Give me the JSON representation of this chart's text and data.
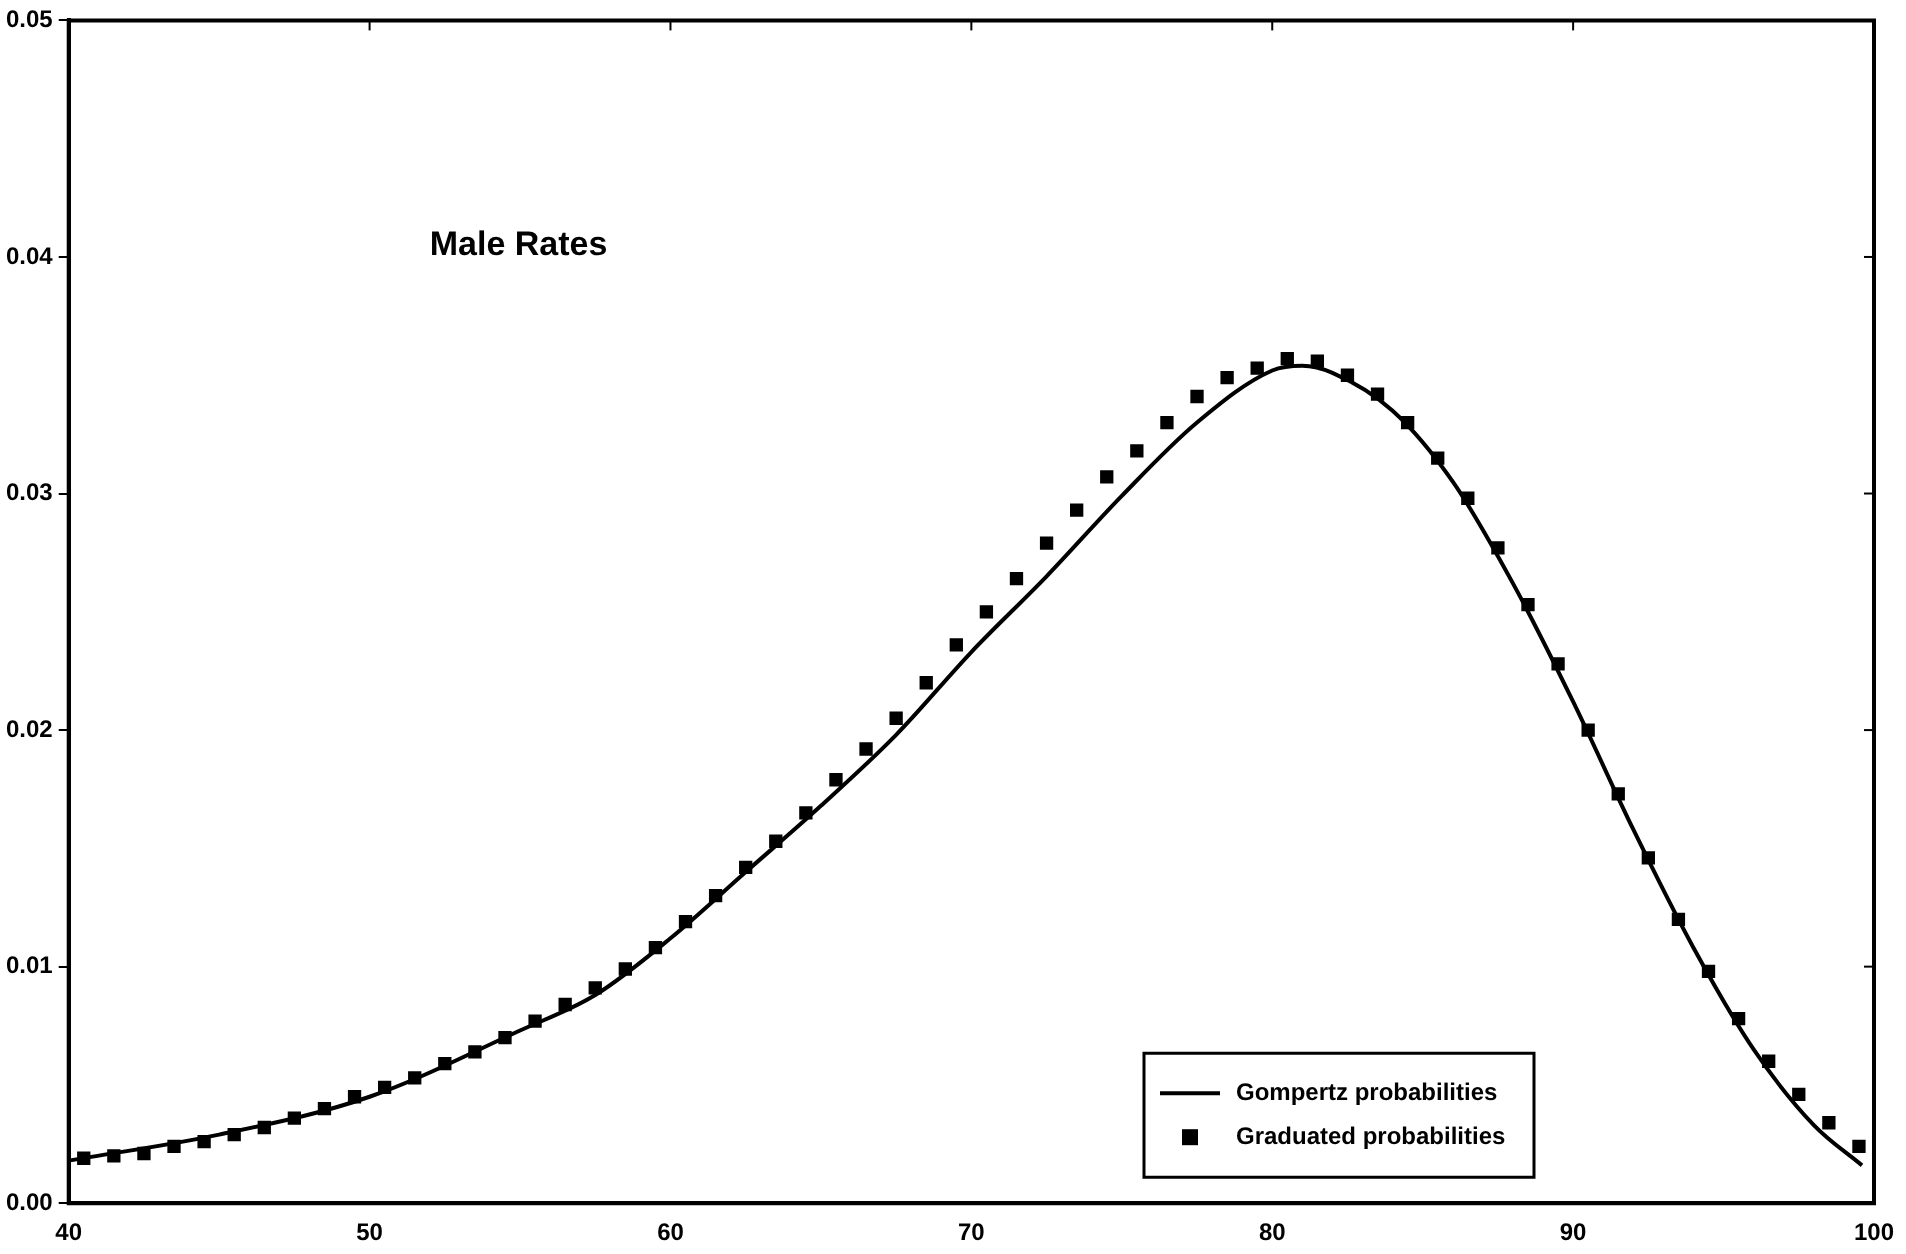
{
  "chart_data": {
    "type": "scatter",
    "annotations": [
      "Male Rates"
    ],
    "xlim": [
      40,
      100
    ],
    "xticks": [
      40,
      50,
      60,
      70,
      80,
      90,
      100
    ],
    "ylim": [
      0,
      0.05
    ],
    "yticks": [
      {
        "value": 0,
        "label": "0.00"
      },
      {
        "value": 0.01,
        "label": "0.01"
      },
      {
        "value": 0.02,
        "label": "0.02"
      },
      {
        "value": 0.03,
        "label": "0.03"
      },
      {
        "value": 0.04,
        "label": "0.04"
      },
      {
        "value": 0.05,
        "label": "0.05"
      }
    ],
    "grid": false,
    "legend": "bottom right",
    "series": [
      {
        "name": "Gompertz probabilities",
        "type": "line",
        "color": "#000000",
        "marker": "none",
        "line_style": "solid",
        "x": [
          40,
          45,
          50,
          55,
          57.5,
          60,
          62.5,
          65,
          67.5,
          70,
          72.5,
          75,
          77.5,
          80,
          81,
          82,
          84,
          86,
          88,
          90,
          92,
          94,
          96,
          98,
          99.6
        ],
        "values": [
          0.0018,
          0.0029,
          0.0045,
          0.0073,
          0.0088,
          0.0112,
          0.014,
          0.0168,
          0.0198,
          0.0233,
          0.0265,
          0.0299,
          0.033,
          0.0352,
          0.0354,
          0.0351,
          0.0335,
          0.0305,
          0.0262,
          0.0212,
          0.0158,
          0.0108,
          0.0065,
          0.0033,
          0.0016
        ]
      },
      {
        "name": "Graduated probabilities",
        "type": "scatter",
        "color": "#000000",
        "marker": "square",
        "x": [
          40.5,
          41.5,
          42.5,
          43.5,
          44.5,
          45.5,
          46.5,
          47.5,
          48.5,
          49.5,
          50.5,
          51.5,
          52.5,
          53.5,
          54.5,
          55.5,
          56.5,
          57.5,
          58.5,
          59.5,
          60.5,
          61.5,
          62.5,
          63.5,
          64.5,
          65.5,
          66.5,
          67.5,
          68.5,
          69.5,
          70.5,
          71.5,
          72.5,
          73.5,
          74.5,
          75.5,
          76.5,
          77.5,
          78.5,
          79.5,
          80.5,
          81.5,
          82.5,
          83.5,
          84.5,
          85.5,
          86.5,
          87.5,
          88.5,
          89.5,
          90.5,
          91.5,
          92.5,
          93.5,
          94.5,
          95.5,
          96.5,
          97.5,
          98.5,
          99.5
        ],
        "values": [
          0.0019,
          0.002,
          0.0021,
          0.0024,
          0.0026,
          0.0029,
          0.0032,
          0.0036,
          0.004,
          0.0045,
          0.0049,
          0.0053,
          0.0059,
          0.0064,
          0.007,
          0.0077,
          0.0084,
          0.0091,
          0.0099,
          0.0108,
          0.0119,
          0.013,
          0.0142,
          0.0153,
          0.0165,
          0.0179,
          0.0192,
          0.0205,
          0.022,
          0.0236,
          0.025,
          0.0264,
          0.0279,
          0.0293,
          0.0307,
          0.0318,
          0.033,
          0.0341,
          0.0349,
          0.0353,
          0.0357,
          0.0356,
          0.035,
          0.0342,
          0.033,
          0.0315,
          0.0298,
          0.0277,
          0.0253,
          0.0228,
          0.02,
          0.0173,
          0.0146,
          0.012,
          0.0098,
          0.0078,
          0.006,
          0.0046,
          0.0034,
          0.0024
        ]
      }
    ]
  }
}
